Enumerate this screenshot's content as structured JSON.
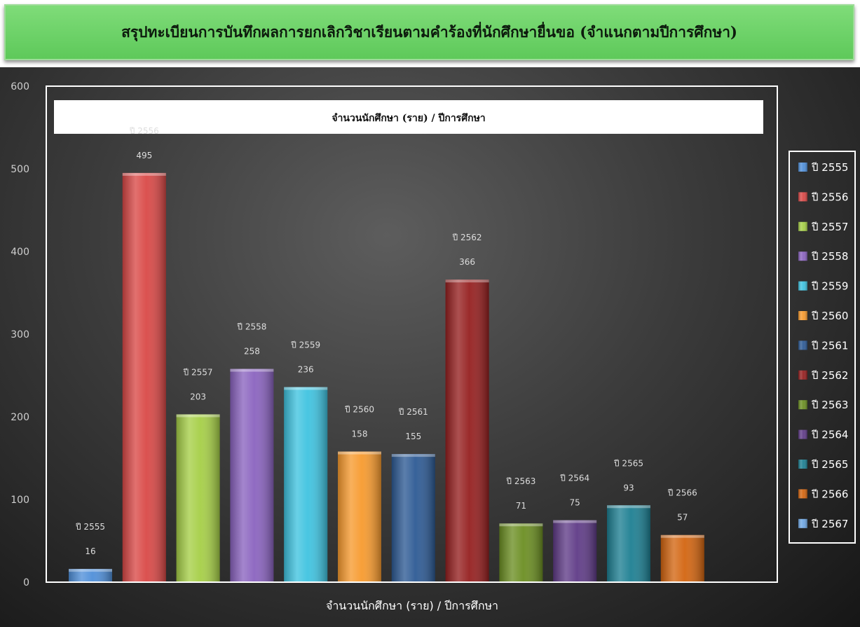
{
  "banner": {
    "title": "สรุปทะเบียนการบันทึกผลการยกเลิกวิชาเรียนตามคำร้องที่นักศึกษายื่นขอ (จำแนกตามปีการศึกษา)"
  },
  "colors": {
    "banner": "#6cd468",
    "panel": "#3b3b3b",
    "axis": "#ffffff",
    "tick": "#cfcfcf",
    "label": "#dddddd"
  },
  "chart_data": {
    "type": "bar",
    "title": "จำนวนนักศึกษา (ราย) / ปีการศึกษา",
    "xlabel": "จำนวนนักศึกษา (ราย) / ปีการศึกษา",
    "ylabel": "",
    "ylim": [
      0,
      600
    ],
    "yticks": [
      0,
      100,
      200,
      300,
      400,
      500,
      600
    ],
    "grid": false,
    "legend_position": "right",
    "categories": [
      "ปี 2555",
      "ปี 2556",
      "ปี 2557",
      "ปี 2558",
      "ปี 2559",
      "ปี 2560",
      "ปี 2561",
      "ปี 2562",
      "ปี 2563",
      "ปี 2564",
      "ปี 2565",
      "ปี 2566"
    ],
    "values": [
      16,
      495,
      203,
      258,
      236,
      158,
      155,
      366,
      71,
      75,
      93,
      57
    ],
    "colors": [
      "#4f8fd9",
      "#d94846",
      "#a6cf47",
      "#8a63bf",
      "#3fc3e0",
      "#f79a2e",
      "#2d5a94",
      "#951f1f",
      "#6b8e22",
      "#5f3b87",
      "#1d7f92",
      "#d36510",
      "#6fa7e3"
    ],
    "legend": [
      "ปี 2555",
      "ปี 2556",
      "ปี 2557",
      "ปี 2558",
      "ปี 2559",
      "ปี 2560",
      "ปี 2561",
      "ปี 2562",
      "ปี 2563",
      "ปี 2564",
      "ปี 2565",
      "ปี 2566",
      "ปี 2567"
    ]
  }
}
